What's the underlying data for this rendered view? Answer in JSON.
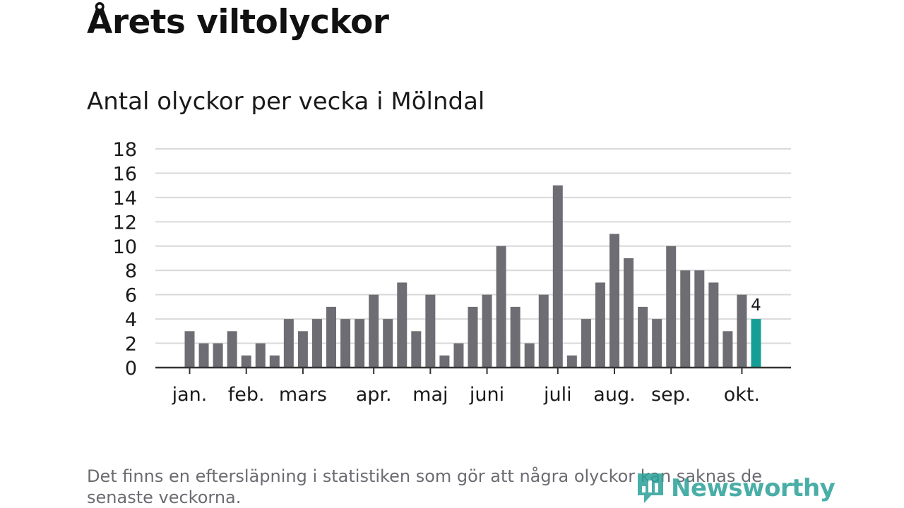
{
  "title": "Årets viltolyckor",
  "subtitle": "Antal olyckor per vecka i Mölndal",
  "footnote": "Det finns en eftersläpning i statistiken som gör att några olyckor kan saknas de senaste veckorna.",
  "brand": {
    "name": "Newsworthy",
    "icon": "newsworthy-logo-icon",
    "color": "#2aa198"
  },
  "colors": {
    "bar": "#6e6d74",
    "highlight": "#139e96",
    "grid": "#d9d9d9",
    "axis": "#333333"
  },
  "chart_data": {
    "type": "bar",
    "title": "Antal olyckor per vecka i Mölndal",
    "xlabel": "",
    "ylabel": "",
    "ylim": [
      0,
      18
    ],
    "yticks": [
      "0",
      "2",
      "4",
      "6",
      "8",
      "10",
      "12",
      "14",
      "16",
      "18"
    ],
    "grid": true,
    "weeks": [
      1,
      2,
      3,
      4,
      5,
      6,
      7,
      8,
      9,
      10,
      11,
      12,
      13,
      14,
      15,
      16,
      17,
      18,
      19,
      20,
      21,
      22,
      23,
      24,
      25,
      26,
      27,
      28,
      29,
      30,
      31,
      32,
      33,
      34,
      35,
      36,
      37,
      38,
      39,
      40,
      41
    ],
    "values": [
      3,
      2,
      2,
      3,
      1,
      2,
      1,
      4,
      3,
      4,
      5,
      4,
      4,
      6,
      4,
      7,
      3,
      6,
      1,
      2,
      5,
      6,
      10,
      5,
      2,
      6,
      15,
      1,
      4,
      7,
      11,
      9,
      5,
      4,
      10,
      8,
      8,
      7,
      3,
      6,
      4
    ],
    "highlight_index": 40,
    "highlight_label": "4",
    "month_labels": [
      {
        "label": "jan.",
        "week": 1
      },
      {
        "label": "feb.",
        "week": 5
      },
      {
        "label": "mars",
        "week": 9
      },
      {
        "label": "apr.",
        "week": 14
      },
      {
        "label": "maj",
        "week": 18
      },
      {
        "label": "juni",
        "week": 22
      },
      {
        "label": "juli",
        "week": 27
      },
      {
        "label": "aug.",
        "week": 31
      },
      {
        "label": "sep.",
        "week": 35
      },
      {
        "label": "okt.",
        "week": 40
      }
    ]
  }
}
